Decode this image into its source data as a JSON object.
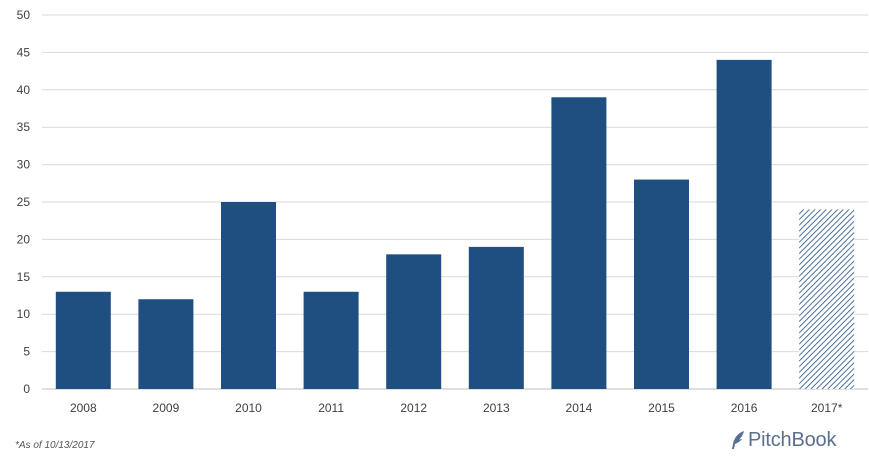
{
  "chart_data": {
    "type": "bar",
    "categories": [
      "2008",
      "2009",
      "2010",
      "2011",
      "2012",
      "2013",
      "2014",
      "2015",
      "2016",
      "2017*"
    ],
    "values": [
      13,
      12,
      25,
      13,
      18,
      19,
      39,
      28,
      44,
      24
    ],
    "projected": [
      false,
      false,
      false,
      false,
      false,
      false,
      false,
      false,
      false,
      true
    ],
    "yticks": [
      0,
      5,
      10,
      15,
      20,
      25,
      30,
      35,
      40,
      45,
      50
    ],
    "ylim": [
      0,
      50
    ],
    "grid": true,
    "legend": "none",
    "colors": {
      "bar": "#1f4e80",
      "grid": "#d9d9d9",
      "axis_text": "#404040",
      "axis_line": "#bfbfbf"
    }
  },
  "footnote": "*As of 10/13/2017",
  "brand": {
    "name": "PitchBook",
    "icon": "feather-logo-icon"
  }
}
